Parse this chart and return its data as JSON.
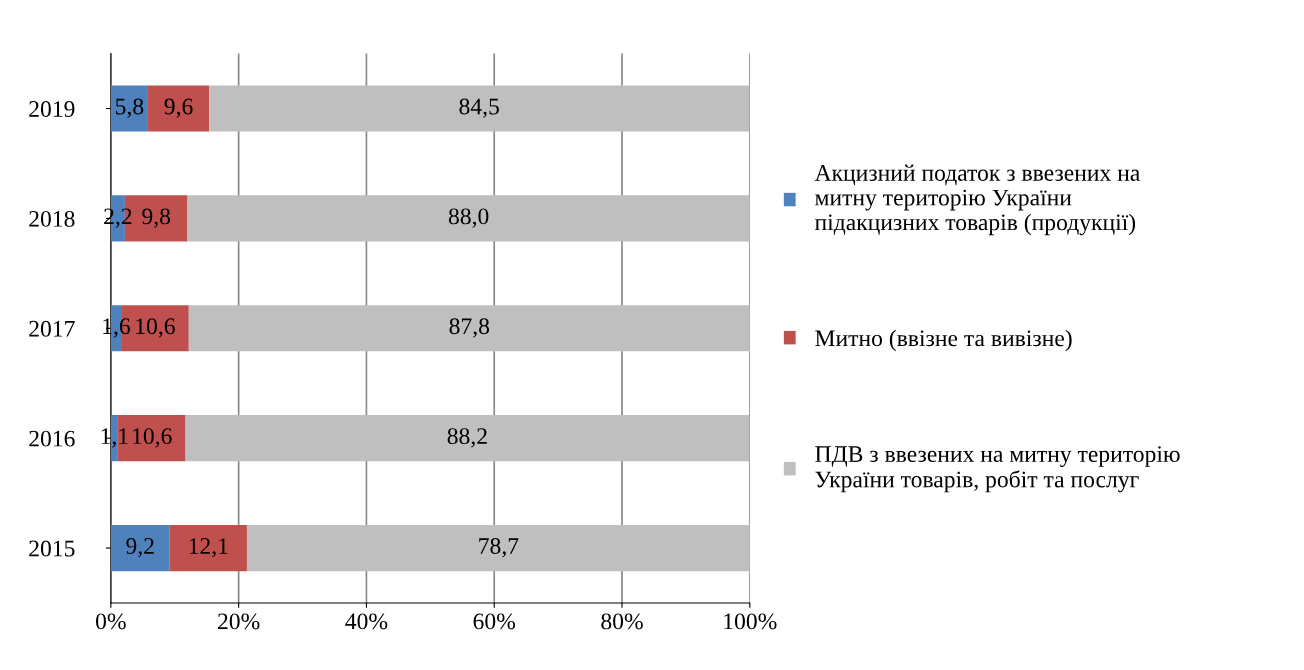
{
  "chart_data": {
    "type": "bar",
    "orientation": "horizontal",
    "stacked": true,
    "categories": [
      "2019",
      "2018",
      "2017",
      "2016",
      "2015"
    ],
    "series": [
      {
        "name": "Акцизний податок з ввезених на митну територію України підакцизних товарів (продукції)",
        "color": "#4f81bd",
        "values": [
          5.8,
          2.2,
          1.6,
          1.1,
          9.2
        ],
        "value_labels": [
          "5,8",
          "2,2",
          "1,6",
          "1,1",
          "9,2"
        ]
      },
      {
        "name": "Митно (ввізне та вивізне)",
        "color": "#c0504d",
        "values": [
          9.6,
          9.8,
          10.6,
          10.6,
          12.1
        ],
        "value_labels": [
          "9,6",
          "9,8",
          "10,6",
          "10,6",
          "12,1"
        ]
      },
      {
        "name": "ПДВ з ввезених на митну територію України товарів, робіт та послуг",
        "color": "#bfbfbf",
        "values": [
          84.5,
          88.0,
          87.8,
          88.2,
          78.7
        ],
        "value_labels": [
          "84,5",
          "88,0",
          "87,8",
          "88,2",
          "78,7"
        ]
      }
    ],
    "xlim": [
      0,
      100
    ],
    "xticks": [
      {
        "value": 0,
        "label": "0%"
      },
      {
        "value": 20,
        "label": "20%"
      },
      {
        "value": 40,
        "label": "40%"
      },
      {
        "value": 60,
        "label": "60%"
      },
      {
        "value": 80,
        "label": "80%"
      },
      {
        "value": 100,
        "label": "100%"
      }
    ],
    "grid": "x",
    "legend": "right"
  }
}
